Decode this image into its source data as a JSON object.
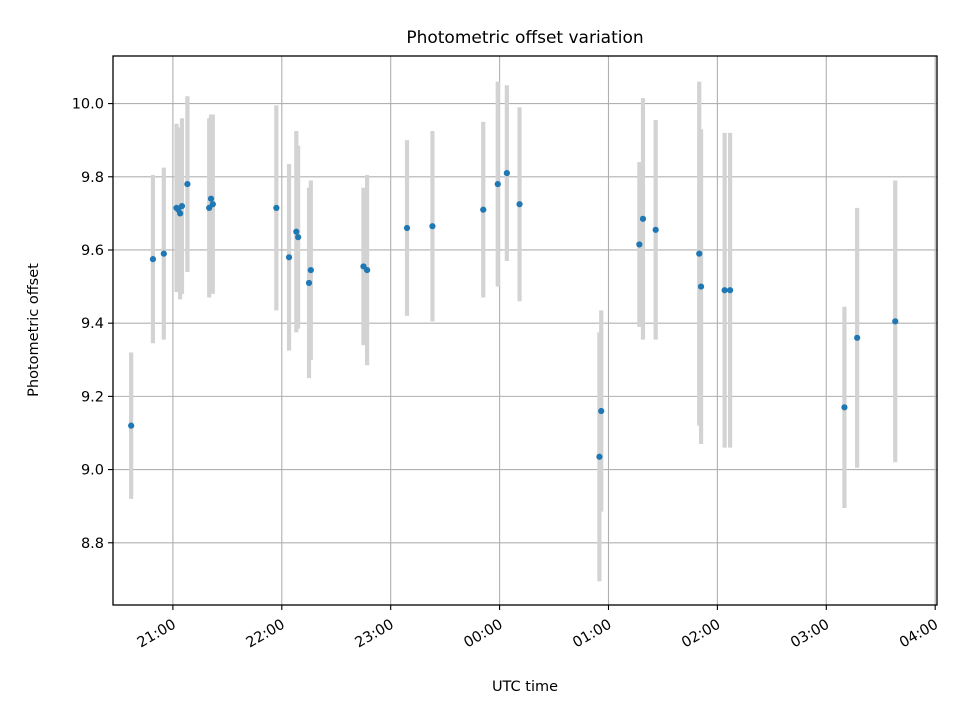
{
  "chart_data": {
    "type": "scatter",
    "title": "Photometric offset variation",
    "xlabel": "UTC time",
    "ylabel": "Photometric offset",
    "x_tick_labels": [
      "21:00",
      "22:00",
      "23:00",
      "00:00",
      "01:00",
      "02:00",
      "03:00",
      "04:00"
    ],
    "y_tick_labels": [
      "8.8",
      "9.0",
      "9.2",
      "9.4",
      "9.6",
      "9.8",
      "10.0"
    ],
    "y_ticks": [
      8.8,
      9.0,
      9.2,
      9.4,
      9.6,
      9.8,
      10.0
    ],
    "xlim": [
      "20:27",
      "04:01"
    ],
    "ylim": [
      8.63,
      10.13
    ],
    "grid": true,
    "errorbars": true,
    "marker_color": "#1f77b4",
    "errorbar_color": "#d3d3d3",
    "points": [
      {
        "x": "20:37",
        "y": 9.12,
        "yerr": 0.2
      },
      {
        "x": "20:49",
        "y": 9.575,
        "yerr": 0.23
      },
      {
        "x": "20:55",
        "y": 9.59,
        "yerr": 0.235
      },
      {
        "x": "21:02",
        "y": 9.715,
        "yerr": 0.23
      },
      {
        "x": "21:03",
        "y": 9.71,
        "yerr": 0.22
      },
      {
        "x": "21:04",
        "y": 9.7,
        "yerr": 0.235
      },
      {
        "x": "21:05",
        "y": 9.72,
        "yerr": 0.24
      },
      {
        "x": "21:08",
        "y": 9.78,
        "yerr": 0.24
      },
      {
        "x": "21:20",
        "y": 9.715,
        "yerr": 0.245
      },
      {
        "x": "21:21",
        "y": 9.74,
        "yerr": 0.23
      },
      {
        "x": "21:22",
        "y": 9.725,
        "yerr": 0.245
      },
      {
        "x": "21:57",
        "y": 9.715,
        "yerr": 0.28
      },
      {
        "x": "22:04",
        "y": 9.58,
        "yerr": 0.255
      },
      {
        "x": "22:08",
        "y": 9.65,
        "yerr": 0.275
      },
      {
        "x": "22:09",
        "y": 9.635,
        "yerr": 0.25
      },
      {
        "x": "22:15",
        "y": 9.51,
        "yerr": 0.26
      },
      {
        "x": "22:16",
        "y": 9.545,
        "yerr": 0.245
      },
      {
        "x": "22:45",
        "y": 9.555,
        "yerr": 0.215
      },
      {
        "x": "22:47",
        "y": 9.545,
        "yerr": 0.26
      },
      {
        "x": "23:09",
        "y": 9.66,
        "yerr": 0.24
      },
      {
        "x": "23:23",
        "y": 9.665,
        "yerr": 0.26
      },
      {
        "x": "23:51",
        "y": 9.71,
        "yerr": 0.24
      },
      {
        "x": "23:59",
        "y": 9.78,
        "yerr": 0.28
      },
      {
        "x": "00:04",
        "y": 9.81,
        "yerr": 0.24
      },
      {
        "x": "00:11",
        "y": 9.725,
        "yerr": 0.265
      },
      {
        "x": "00:55",
        "y": 9.035,
        "yerr": 0.34
      },
      {
        "x": "00:56",
        "y": 9.16,
        "yerr": 0.275
      },
      {
        "x": "01:17",
        "y": 9.615,
        "yerr": 0.225
      },
      {
        "x": "01:19",
        "y": 9.685,
        "yerr": 0.33
      },
      {
        "x": "01:26",
        "y": 9.655,
        "yerr": 0.3
      },
      {
        "x": "01:50",
        "y": 9.59,
        "yerr": 0.47
      },
      {
        "x": "01:51",
        "y": 9.5,
        "yerr": 0.43
      },
      {
        "x": "02:04",
        "y": 9.49,
        "yerr": 0.43
      },
      {
        "x": "02:07",
        "y": 9.49,
        "yerr": 0.43
      },
      {
        "x": "03:10",
        "y": 9.17,
        "yerr": 0.275
      },
      {
        "x": "03:17",
        "y": 9.36,
        "yerr": 0.355
      },
      {
        "x": "03:38",
        "y": 9.405,
        "yerr": 0.385
      }
    ]
  }
}
